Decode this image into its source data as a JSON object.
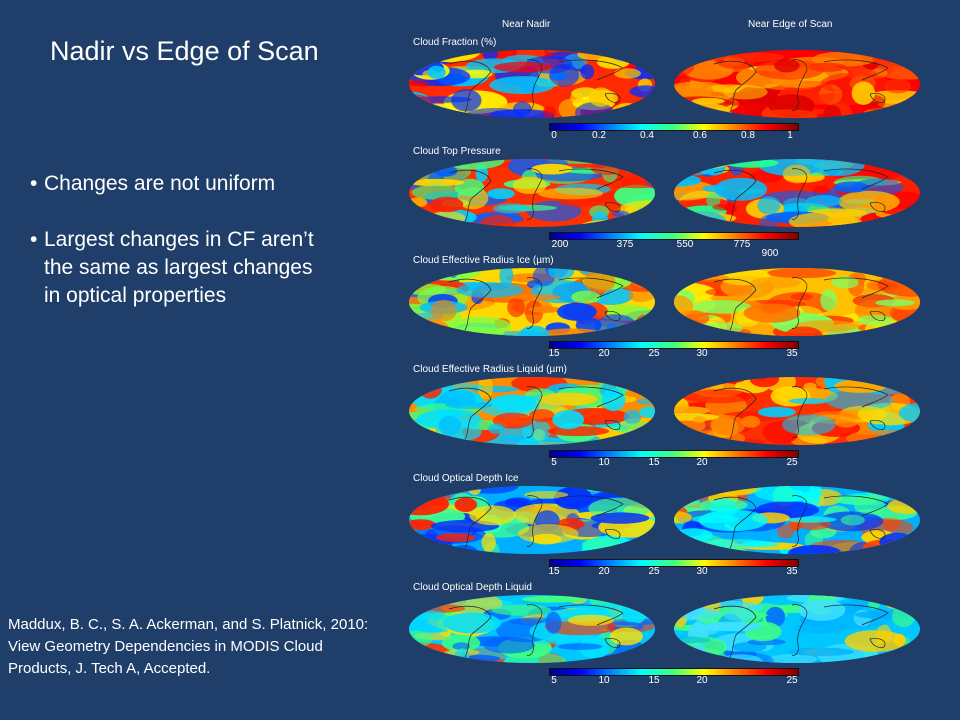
{
  "slide": {
    "title": "Nadir vs Edge of Scan",
    "bullets": [
      "Changes are not uniform",
      "Largest changes in CF aren’t the same as largest changes in optical properties"
    ],
    "citation": "Maddux, B. C., S. A. Ackerman, and S. Platnick, 2010: View Geometry Dependencies in MODIS Cloud Products, J. Tech A, Accepted."
  },
  "figure": {
    "col_headers": [
      "Near Nadir",
      "Near Edge of Scan"
    ],
    "panels": [
      {
        "label": "Cloud Fraction (%)",
        "ticks": [
          "0",
          "0.2",
          "0.4",
          "0.6",
          "0.8",
          "1"
        ]
      },
      {
        "label": "Cloud Top Pressure",
        "ticks": [
          "200",
          "375",
          "550",
          "775",
          "900"
        ]
      },
      {
        "label": "Cloud Effective Radius Ice (µm)",
        "ticks": [
          "15",
          "20",
          "25",
          "30",
          "35"
        ]
      },
      {
        "label": "Cloud Effective Radius Liquid (µm)",
        "ticks": [
          "5",
          "10",
          "15",
          "20",
          "25"
        ]
      },
      {
        "label": "Cloud Optical Depth Ice",
        "ticks": [
          "15",
          "20",
          "25",
          "30",
          "35"
        ]
      },
      {
        "label": "Cloud Optical Depth Liquid",
        "ticks": [
          "5",
          "10",
          "15",
          "20",
          "25"
        ]
      }
    ]
  }
}
